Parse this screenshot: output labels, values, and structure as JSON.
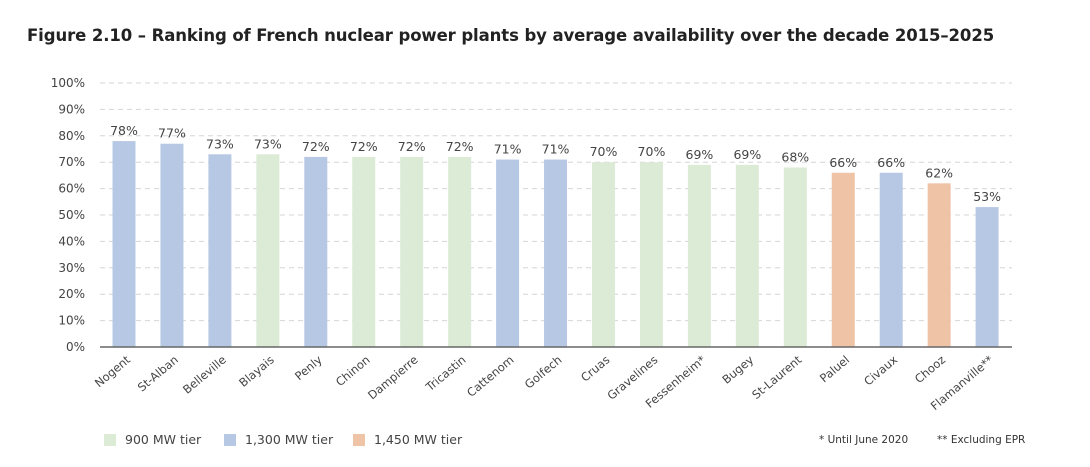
{
  "title": "Figure 2.10 – Ranking of French nuclear power plants by average availability over the decade 2015–2025",
  "chart_data": {
    "type": "bar",
    "title": "Figure 2.10 – Ranking of French nuclear power plants by average availability over the decade 2015–2025",
    "xlabel": "",
    "ylabel": "",
    "ylim": [
      0,
      100
    ],
    "yticks": [
      "0%",
      "10%",
      "20%",
      "30%",
      "40%",
      "50%",
      "60%",
      "70%",
      "80%",
      "90%",
      "100%"
    ],
    "grid": true,
    "legend_position": "bottom-left",
    "categories": [
      "Nogent",
      "St-Alban",
      "Belleville",
      "Blayais",
      "Penly",
      "Chinon",
      "Dampierre",
      "Tricastin",
      "Cattenom",
      "Golfech",
      "Cruas",
      "Gravelines",
      "Fessenheim*",
      "Bugey",
      "St-Laurent",
      "Paluel",
      "Civaux",
      "Chooz",
      "Flamanville**"
    ],
    "values": [
      78,
      77,
      73,
      73,
      72,
      72,
      72,
      72,
      71,
      71,
      70,
      70,
      69,
      69,
      68,
      66,
      66,
      62,
      53
    ],
    "data_labels": [
      "78%",
      "77%",
      "73%",
      "73%",
      "72%",
      "72%",
      "72%",
      "72%",
      "71%",
      "71%",
      "70%",
      "70%",
      "69%",
      "69%",
      "68%",
      "66%",
      "66%",
      "62%",
      "53%"
    ],
    "tiers": [
      "1300",
      "1300",
      "1300",
      "900",
      "1300",
      "900",
      "900",
      "900",
      "1300",
      "1300",
      "900",
      "900",
      "900",
      "900",
      "900",
      "1450",
      "1300",
      "1450",
      "1300"
    ],
    "legend": [
      {
        "key": "900",
        "label": "900 MW tier",
        "color": "#dcebd6"
      },
      {
        "key": "1300",
        "label": "1,300 MW tier",
        "color": "#b7c8e4"
      },
      {
        "key": "1450",
        "label": "1,450 MW tier",
        "color": "#efc4a6"
      }
    ],
    "footnotes": [
      "* Until June 2020",
      "** Excluding EPR"
    ]
  }
}
